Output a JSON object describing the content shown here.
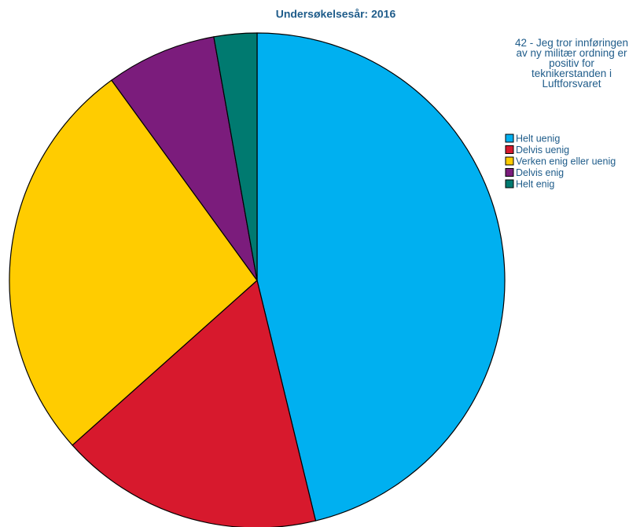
{
  "chart_data": {
    "type": "pie",
    "title": "Undersøkelsesår: 2016",
    "legend_title": "42 - Jeg tror innføringen av ny militær ordning er positiv for teknikerstanden i Luftforsvaret",
    "categories": [
      "Helt uenig",
      "Delvis uenig",
      "Verken enig eller uenig",
      "Delvis enig",
      "Helt enig"
    ],
    "values": [
      46.2,
      17.2,
      26.6,
      7.2,
      2.8
    ],
    "colors": [
      "#00b0f0",
      "#d7192d",
      "#ffcc00",
      "#7b1c7c",
      "#007a70"
    ],
    "legend_position": "right"
  }
}
